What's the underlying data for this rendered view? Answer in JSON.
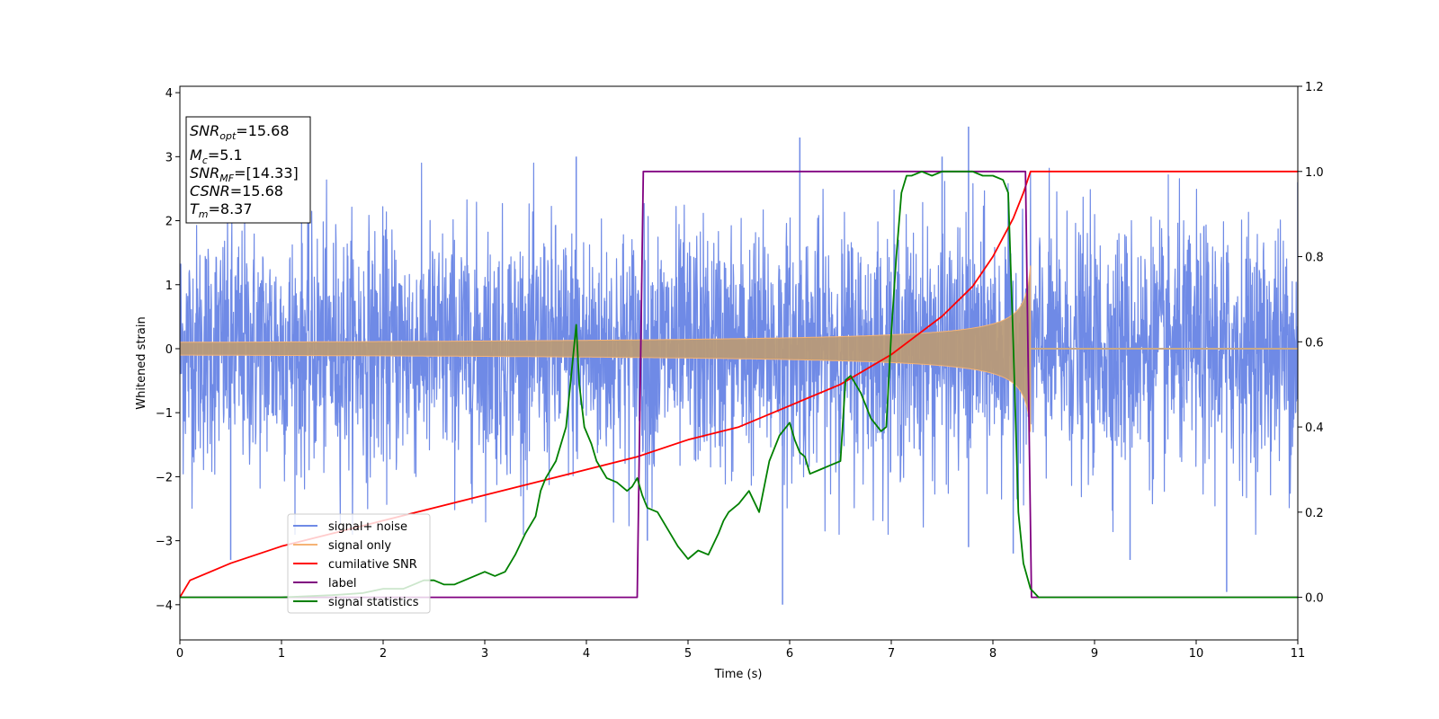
{
  "chart_data": {
    "type": "line",
    "xlabel": "Time (s)",
    "ylabel": "Whitened strain",
    "xlim": [
      0,
      11
    ],
    "ylim": [
      -4.55,
      4.1
    ],
    "y2lim": [
      -0.1,
      1.2
    ],
    "x_ticks": [
      "0",
      "1",
      "2",
      "3",
      "4",
      "5",
      "6",
      "7",
      "8",
      "9",
      "10",
      "11"
    ],
    "y_ticks": [
      "−4",
      "−3",
      "−2",
      "−1",
      "0",
      "1",
      "2",
      "3",
      "4"
    ],
    "y2_ticks": [
      "0.0",
      "0.2",
      "0.4",
      "0.6",
      "0.8",
      "1.0",
      "1.2"
    ],
    "grid": false,
    "legend_position": "lower-left",
    "info_box": {
      "snr_opt": {
        "base": "SNR",
        "sub": "opt",
        "value": "=15.68"
      },
      "mc": {
        "base": "M",
        "sub": "c",
        "value": "=5.1"
      },
      "snr_mf": {
        "base": "SNR",
        "sub": "MF",
        "value": "=[14.33]"
      },
      "csnr": {
        "base": "CSNR",
        "value": "=15.68"
      },
      "tm": {
        "base": "T",
        "sub": "m",
        "value": "=8.37"
      }
    },
    "series": [
      {
        "name": "signal+ noise",
        "axis": "left",
        "color": "#6f8ae6",
        "noise_std": 0.95,
        "spike_peaks": [
          [
            0.5,
            -3.3
          ],
          [
            3.9,
            3.0
          ],
          [
            4.6,
            -3.0
          ],
          [
            5.93,
            -4.0
          ],
          [
            6.1,
            3.3
          ],
          [
            7.5,
            3.0
          ],
          [
            7.76,
            3.47
          ],
          [
            7.76,
            -3.1
          ],
          [
            8.2,
            -3.2
          ],
          [
            9.35,
            -3.3
          ],
          [
            10.3,
            -3.8
          ],
          [
            11.0,
            2.6
          ]
        ]
      },
      {
        "name": "signal only",
        "axis": "left",
        "color": "#f5b375",
        "envelope": {
          "t_merge": 8.37,
          "amp_start": 0.1,
          "amp_merge": 1.3,
          "after": 0.0
        }
      },
      {
        "name": "cumilative SNR",
        "axis": "right",
        "color": "#ff0000",
        "x": [
          0,
          0.1,
          0.5,
          1,
          2,
          3,
          4,
          4.5,
          5,
          5.5,
          6,
          6.5,
          7,
          7.5,
          7.8,
          8.0,
          8.2,
          8.3,
          8.37,
          8.5,
          11
        ],
        "y": [
          0.0,
          0.04,
          0.08,
          0.12,
          0.18,
          0.24,
          0.3,
          0.33,
          0.37,
          0.4,
          0.45,
          0.5,
          0.57,
          0.66,
          0.73,
          0.8,
          0.89,
          0.95,
          1.0,
          1.0,
          1.0
        ]
      },
      {
        "name": "label",
        "axis": "right",
        "color": "#800080",
        "x": [
          0,
          4.5,
          4.56,
          8.32,
          8.38,
          11
        ],
        "y": [
          0,
          0,
          1,
          1,
          0,
          0
        ]
      },
      {
        "name": "signal statistics",
        "axis": "right",
        "color": "#008000",
        "x": [
          0,
          1.0,
          1.5,
          1.8,
          2.0,
          2.2,
          2.3,
          2.4,
          2.5,
          2.6,
          2.7,
          2.8,
          2.9,
          3.0,
          3.1,
          3.2,
          3.3,
          3.4,
          3.5,
          3.55,
          3.6,
          3.7,
          3.8,
          3.85,
          3.9,
          3.93,
          3.98,
          4.05,
          4.1,
          4.2,
          4.3,
          4.4,
          4.45,
          4.5,
          4.55,
          4.6,
          4.7,
          4.8,
          4.9,
          5.0,
          5.1,
          5.2,
          5.3,
          5.35,
          5.4,
          5.5,
          5.6,
          5.7,
          5.8,
          5.9,
          6.0,
          6.05,
          6.1,
          6.15,
          6.2,
          6.3,
          6.4,
          6.5,
          6.55,
          6.6,
          6.7,
          6.8,
          6.9,
          6.95,
          7.0,
          7.05,
          7.1,
          7.15,
          7.2,
          7.3,
          7.4,
          7.5,
          7.6,
          7.7,
          7.8,
          7.9,
          8.0,
          8.1,
          8.15,
          8.2,
          8.25,
          8.3,
          8.37,
          8.45,
          8.6,
          9.0,
          11.0
        ],
        "y": [
          0.0,
          0.0,
          0.005,
          0.01,
          0.02,
          0.02,
          0.03,
          0.04,
          0.04,
          0.03,
          0.03,
          0.04,
          0.05,
          0.06,
          0.05,
          0.06,
          0.1,
          0.15,
          0.19,
          0.25,
          0.28,
          0.32,
          0.4,
          0.52,
          0.64,
          0.5,
          0.4,
          0.36,
          0.32,
          0.28,
          0.27,
          0.25,
          0.26,
          0.28,
          0.24,
          0.21,
          0.2,
          0.16,
          0.12,
          0.09,
          0.11,
          0.1,
          0.15,
          0.18,
          0.2,
          0.22,
          0.25,
          0.2,
          0.32,
          0.38,
          0.41,
          0.37,
          0.34,
          0.33,
          0.29,
          0.3,
          0.31,
          0.32,
          0.51,
          0.52,
          0.48,
          0.42,
          0.39,
          0.4,
          0.62,
          0.8,
          0.95,
          0.99,
          0.99,
          1.0,
          0.99,
          1.0,
          1.0,
          1.0,
          1.0,
          0.99,
          0.99,
          0.98,
          0.95,
          0.6,
          0.2,
          0.08,
          0.02,
          0.0,
          0.0,
          0.0,
          0.0
        ]
      }
    ]
  }
}
